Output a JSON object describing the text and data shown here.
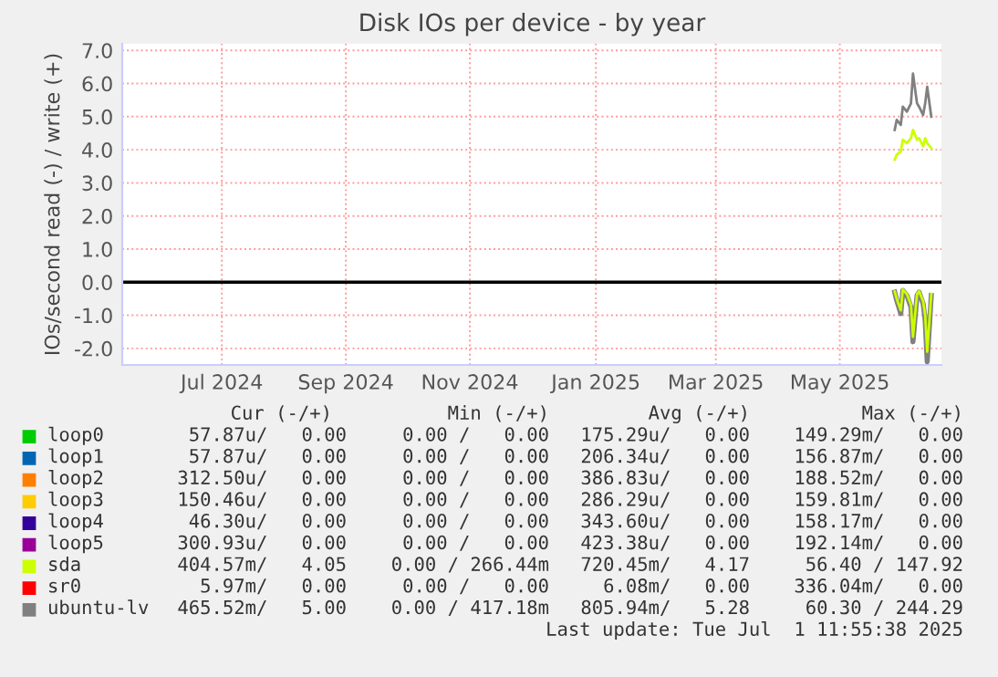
{
  "chart_data": {
    "type": "line",
    "title": "Disk IOs per device - by year",
    "ylabel": "IOs/second read (-) / write (+)",
    "x": [
      "2025-06-12",
      "2025-06-13",
      "2025-06-15",
      "2025-06-16",
      "2025-06-18",
      "2025-06-20",
      "2025-06-21",
      "2025-06-23",
      "2025-06-24",
      "2025-06-26",
      "2025-06-27",
      "2025-06-28",
      "2025-06-30"
    ],
    "xlim": [
      "2024-05-28",
      "2025-07-05"
    ],
    "xticks": [
      {
        "value": "2024-07-16",
        "label": "Jul 2024"
      },
      {
        "value": "2024-09-15",
        "label": "Sep 2024"
      },
      {
        "value": "2024-11-15",
        "label": "Nov 2024"
      },
      {
        "value": "2025-01-16",
        "label": "Jan 2025"
      },
      {
        "value": "2025-03-16",
        "label": "Mar 2025"
      },
      {
        "value": "2025-05-16",
        "label": "May 2025"
      }
    ],
    "ylim": [
      -2.5,
      7.2
    ],
    "yticks": [
      {
        "value": -2,
        "label": "-2.0"
      },
      {
        "value": -1,
        "label": "-1.0"
      },
      {
        "value": 0,
        "label": "0.0"
      },
      {
        "value": 1,
        "label": "1.0"
      },
      {
        "value": 2,
        "label": "2.0"
      },
      {
        "value": 3,
        "label": "3.0"
      },
      {
        "value": 4,
        "label": "4.0"
      },
      {
        "value": 5,
        "label": "5.0"
      },
      {
        "value": 6,
        "label": "6.0"
      },
      {
        "value": 7,
        "label": "7.0"
      }
    ],
    "grid": true,
    "legend": "bottom",
    "marker": "none",
    "line_style": "solid",
    "ref_lines": [
      {
        "axis": "y",
        "value": 0,
        "color": "#000000"
      }
    ],
    "series": [
      {
        "name": "loop0",
        "color": "#00cc00",
        "values": [
          null,
          null,
          null,
          null,
          null,
          null,
          null,
          null,
          null,
          null,
          null,
          null,
          null
        ]
      },
      {
        "name": "loop1",
        "color": "#0066b3",
        "values": [
          null,
          null,
          null,
          null,
          null,
          null,
          null,
          null,
          null,
          null,
          null,
          null,
          null
        ]
      },
      {
        "name": "loop2",
        "color": "#ff8000",
        "values": [
          null,
          null,
          null,
          null,
          null,
          null,
          null,
          null,
          null,
          null,
          null,
          null,
          null
        ]
      },
      {
        "name": "loop3",
        "color": "#ffcc00",
        "values": [
          null,
          null,
          null,
          null,
          null,
          null,
          null,
          null,
          null,
          null,
          null,
          null,
          null
        ]
      },
      {
        "name": "loop4",
        "color": "#330099",
        "values": [
          null,
          null,
          null,
          null,
          null,
          null,
          null,
          null,
          null,
          null,
          null,
          null,
          null
        ]
      },
      {
        "name": "loop5",
        "color": "#990099",
        "values": [
          null,
          null,
          null,
          null,
          null,
          null,
          null,
          null,
          null,
          null,
          null,
          null,
          null
        ]
      },
      {
        "name": "sda",
        "color": "#ccff00",
        "values": [
          3.7,
          3.85,
          3.95,
          4.3,
          4.2,
          4.35,
          4.6,
          4.3,
          4.35,
          4.1,
          4.35,
          4.2,
          4.05
        ]
      },
      {
        "name": "sr0",
        "color": "#ff0000",
        "values": [
          null,
          null,
          null,
          null,
          null,
          null,
          null,
          null,
          null,
          null,
          null,
          null,
          null
        ]
      },
      {
        "name": "ubuntu-lv",
        "color": "#808080",
        "values": [
          4.6,
          4.9,
          4.75,
          5.3,
          5.15,
          5.4,
          6.3,
          5.4,
          5.3,
          5.05,
          5.4,
          5.9,
          5.0
        ]
      },
      {
        "color": "#808080",
        "values": [
          -0.3,
          -0.55,
          -0.95,
          -0.25,
          -0.4,
          -0.75,
          -1.8,
          -0.4,
          -0.3,
          -0.65,
          -1.15,
          -2.4,
          -0.4
        ]
      },
      {
        "color": "#ccff00",
        "values": [
          -0.28,
          -0.5,
          -0.85,
          -0.22,
          -0.36,
          -0.68,
          -1.65,
          -0.36,
          -0.27,
          -0.58,
          -1.0,
          -2.1,
          -0.36
        ]
      }
    ],
    "annotations": [
      "Cur (-/+)",
      "Min (-/+)",
      "Avg (-/+)",
      "Max (-/+)",
      "57.87u/   0.00",
      "0.00 /   0.00",
      "175.29u/   0.00",
      "149.29m/   0.00",
      "57.87u/   0.00",
      "0.00 /   0.00",
      "206.34u/   0.00",
      "156.87m/   0.00",
      "312.50u/   0.00",
      "0.00 /   0.00",
      "386.83u/   0.00",
      "188.52m/   0.00",
      "150.46u/   0.00",
      "0.00 /   0.00",
      "286.29u/   0.00",
      "159.81m/   0.00",
      "46.30u/   0.00",
      "0.00 /   0.00",
      "343.60u/   0.00",
      "158.17m/   0.00",
      "300.93u/   0.00",
      "0.00 /   0.00",
      "423.38u/   0.00",
      "192.14m/   0.00",
      "404.57m/   4.05",
      "0.00 / 266.44m",
      "720.45m/   4.17",
      "56.40 / 147.92",
      "5.97m/   0.00",
      "0.00 /   0.00",
      "6.08m/   0.00",
      "336.04m/   0.00",
      "465.52m/   5.00",
      "0.00 / 417.18m",
      "805.94m/   5.28",
      "60.30 / 244.29",
      "Last update: Tue Jul  1 11:55:38 2025"
    ]
  }
}
